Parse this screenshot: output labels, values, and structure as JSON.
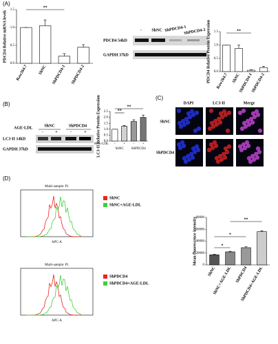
{
  "panels": {
    "a": "(A)",
    "b": "(B)",
    "c": "(C)",
    "d": "(D)"
  },
  "blot_a": {
    "columns": [
      "-",
      "ShNC",
      "ShPDCD4-1",
      "ShPDCD4-2"
    ],
    "rows": [
      "PDCD4 54kD",
      "GAPDH 37kD"
    ]
  },
  "blot_b": {
    "treatment": "AGE-LDL",
    "groups": [
      "ShNC",
      "ShPDCD4"
    ],
    "signs": [
      "-",
      "+",
      "-",
      "+"
    ],
    "rows": [
      "LC3-II 14kD",
      "GAPDH 37kD"
    ]
  },
  "microscopy": {
    "columns": [
      "DAPI",
      "LC3-II",
      "Merge"
    ],
    "rows": [
      "ShNC",
      "ShPDCD4"
    ]
  },
  "flow": [
    {
      "title": "Multi-sample: P1",
      "x_label": "APC-A",
      "legend": [
        {
          "name": "ShNC",
          "color": "#e8251f"
        },
        {
          "name": "ShNC+AGE-LDL",
          "color": "#3bd13b"
        }
      ]
    },
    {
      "title": "Multi-sample: P1",
      "x_label": "APC-A",
      "legend": [
        {
          "name": "ShPDCD4",
          "color": "#e8251f"
        },
        {
          "name": "ShPDCD4+AGE-LDL",
          "color": "#3bd13b"
        }
      ]
    }
  ],
  "chart_data": [
    {
      "type": "bar",
      "y_label": "PDCD4 Relative mRNA levels",
      "categories": [
        "Raw264.7",
        "ShNC",
        "ShPDCD4-1",
        "ShPDCD4-2"
      ],
      "values": [
        1.0,
        1.05,
        0.2,
        0.45
      ],
      "errors": [
        0,
        0.16,
        0.07,
        0.07
      ],
      "colors": [
        "#ffffff",
        "#ffffff",
        "#ffffff",
        "#ffffff"
      ],
      "ylim": [
        0,
        1.5
      ],
      "yticks": [
        {
          "value": 0,
          "label": "0.0"
        },
        0.5,
        {
          "value": 1,
          "label": "1.0"
        },
        1.5
      ],
      "annotations": [
        "**"
      ]
    },
    {
      "type": "bar",
      "y_label": "PDCD4 Relative Protein Expression",
      "categories": [
        "Raw264.7",
        "ShNC",
        "ShPDCD4-1",
        "ShPDCD4-2"
      ],
      "values": [
        1.0,
        0.87,
        0.05,
        0.15
      ],
      "errors": [
        0,
        0.12,
        0.02,
        0.05
      ],
      "colors": [
        "#ffffff",
        "#ffffff",
        "#ffffff",
        "#ffffff"
      ],
      "ylim": [
        0,
        1.5
      ],
      "yticks": [
        {
          "value": 0,
          "label": "0.0"
        },
        0.5,
        {
          "value": 1,
          "label": "1.0"
        },
        1.5
      ],
      "annotations": [
        "**"
      ]
    },
    {
      "type": "bar",
      "y_label": "LC3-II Relative Protein Expression",
      "categories": [
        "-",
        "+",
        "-",
        "+"
      ],
      "x_label": "AGE-LDL",
      "groups": [
        "ShNC",
        "ShPDCD4"
      ],
      "values": [
        1.0,
        1.25,
        1.65,
        2.0
      ],
      "errors": [
        0,
        0.07,
        0.15,
        0.2
      ],
      "colors": [
        "#ffffff",
        "#dddddd",
        "#999999",
        "#777777"
      ],
      "ylim": [
        0,
        2.5
      ],
      "yticks": [
        {
          "value": 0,
          "label": "0.0"
        },
        0.5,
        {
          "value": 1,
          "label": "1.0"
        },
        1.5,
        {
          "value": 2,
          "label": "2.0"
        },
        2.5
      ],
      "annotations": [
        "**",
        "**"
      ]
    },
    {
      "type": "bar",
      "y_label": "Mean fluorescence intensity",
      "categories": [
        "ShNC",
        "ShNC+AGE-LDL",
        "ShPDCD4",
        "ShPDCD4+AGE-LDL"
      ],
      "values": [
        17000,
        22000,
        29000,
        56000
      ],
      "errors": [
        1000,
        1000,
        1500,
        1500
      ],
      "colors": [
        "#555555",
        "#888888",
        "#999999",
        "#cccccc"
      ],
      "ylim": [
        0,
        80000
      ],
      "yticks": [
        0,
        20000,
        40000,
        60000,
        80000
      ],
      "annotations": [
        "*",
        "*",
        "**"
      ]
    }
  ]
}
